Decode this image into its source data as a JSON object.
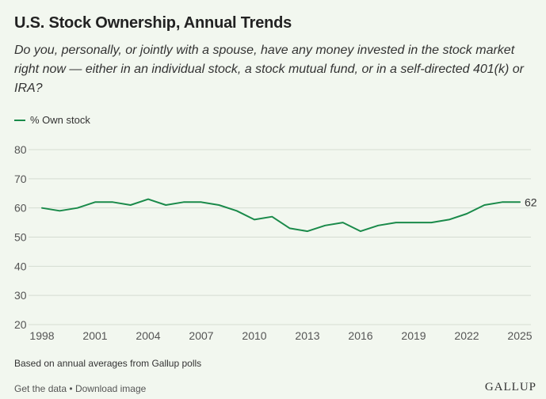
{
  "header": {
    "title": "U.S. Stock Ownership, Annual Trends",
    "subtitle": "Do you, personally, or jointly with a spouse, have any money invested in the stock market right now — either in an individual stock, a stock mutual fund, or in a self-directed 401(k) or IRA?"
  },
  "colors": {
    "line": "#1a8a4a",
    "grid": "#d5dcd2",
    "axis_text": "#555555"
  },
  "chart_data": {
    "type": "line",
    "title": "U.S. Stock Ownership, Annual Trends",
    "xlabel": "",
    "ylabel": "",
    "ylim": [
      20,
      80
    ],
    "xlim": [
      1998,
      2025
    ],
    "yticks": [
      20,
      30,
      40,
      50,
      60,
      70,
      80
    ],
    "xticks": [
      1998,
      2001,
      2004,
      2007,
      2010,
      2013,
      2016,
      2019,
      2022,
      2025
    ],
    "legend": "top-left",
    "grid": "horizontal",
    "series": [
      {
        "name": "% Own stock",
        "x": [
          1998,
          1999,
          2000,
          2001,
          2002,
          2003,
          2004,
          2005,
          2006,
          2007,
          2008,
          2009,
          2010,
          2011,
          2012,
          2013,
          2014,
          2015,
          2016,
          2017,
          2018,
          2019,
          2020,
          2021,
          2022,
          2023,
          2024,
          2025
        ],
        "values": [
          60,
          59,
          60,
          62,
          62,
          61,
          63,
          61,
          62,
          62,
          61,
          59,
          56,
          57,
          53,
          52,
          54,
          55,
          52,
          54,
          55,
          55,
          55,
          56,
          58,
          61,
          62,
          62
        ]
      }
    ],
    "end_label": "62"
  },
  "note": "Based on annual averages from Gallup polls",
  "footer": {
    "get_data": "Get the data",
    "separator": "•",
    "download": "Download image",
    "brand": "GALLUP"
  }
}
